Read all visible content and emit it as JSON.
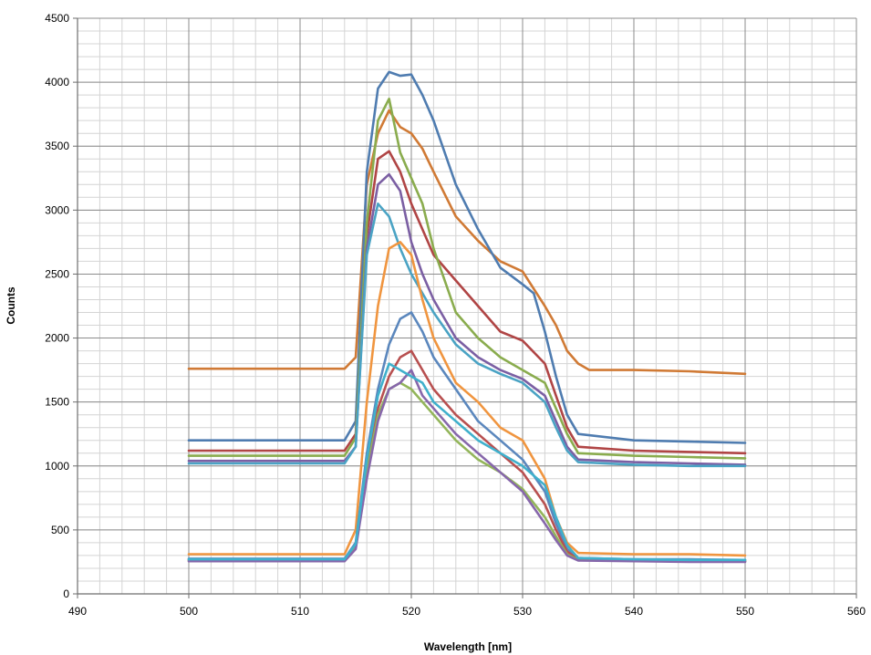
{
  "chart_data": {
    "type": "line",
    "title": "",
    "xlabel": "Wavelength [nm]",
    "ylabel": "Counts",
    "xlim": [
      490,
      560
    ],
    "ylim": [
      0,
      4500
    ],
    "x_ticks": [
      490,
      500,
      510,
      520,
      530,
      540,
      550,
      560
    ],
    "y_ticks": [
      0,
      500,
      1000,
      1500,
      2000,
      2500,
      3000,
      3500,
      4000,
      4500
    ],
    "x_tick_labels": [
      "490",
      "500",
      "510",
      "520",
      "530",
      "540",
      "550",
      "560"
    ],
    "y_tick_labels": [
      "0",
      "500",
      "1000",
      "1500",
      "2000",
      "2500",
      "3000",
      "3500",
      "4000",
      "4500"
    ],
    "grid": true,
    "legend": "none",
    "series": [
      {
        "color": "#d07a35",
        "x": [
          500,
          514,
          515,
          516,
          517,
          518,
          519,
          520,
          521,
          522,
          524,
          526,
          528,
          530,
          532,
          533,
          534,
          535,
          536,
          540,
          545,
          550
        ],
        "y": [
          1760,
          1760,
          1850,
          3200,
          3600,
          3780,
          3650,
          3600,
          3480,
          3300,
          2950,
          2760,
          2600,
          2520,
          2250,
          2100,
          1900,
          1800,
          1750,
          1750,
          1740,
          1720
        ]
      },
      {
        "color": "#4f7cb0",
        "x": [
          500,
          514,
          515,
          516,
          517,
          518,
          519,
          520,
          521,
          522,
          524,
          526,
          528,
          530,
          531,
          532,
          533,
          534,
          535,
          540,
          545,
          550
        ],
        "y": [
          1200,
          1200,
          1350,
          3300,
          3950,
          4080,
          4050,
          4060,
          3900,
          3700,
          3200,
          2850,
          2550,
          2420,
          2350,
          2050,
          1700,
          1400,
          1250,
          1200,
          1190,
          1180
        ]
      },
      {
        "color": "#b04545",
        "x": [
          500,
          514,
          515,
          516,
          517,
          518,
          519,
          520,
          521,
          522,
          524,
          526,
          528,
          530,
          532,
          533,
          534,
          535,
          540,
          545,
          550
        ],
        "y": [
          1120,
          1120,
          1250,
          2800,
          3400,
          3460,
          3300,
          3050,
          2850,
          2650,
          2450,
          2250,
          2050,
          1980,
          1800,
          1550,
          1300,
          1150,
          1120,
          1110,
          1100
        ]
      },
      {
        "color": "#8aac4e",
        "x": [
          500,
          514,
          515,
          516,
          517,
          518,
          519,
          520,
          521,
          522,
          524,
          526,
          528,
          530,
          532,
          533,
          534,
          535,
          540,
          545,
          550
        ],
        "y": [
          1080,
          1080,
          1220,
          2900,
          3700,
          3870,
          3450,
          3250,
          3050,
          2700,
          2200,
          2000,
          1850,
          1750,
          1650,
          1450,
          1250,
          1100,
          1080,
          1070,
          1060
        ]
      },
      {
        "color": "#7b5fa3",
        "x": [
          500,
          514,
          515,
          516,
          517,
          518,
          519,
          520,
          521,
          522,
          524,
          526,
          528,
          530,
          532,
          533,
          534,
          535,
          540,
          545,
          550
        ],
        "y": [
          1040,
          1040,
          1150,
          2700,
          3200,
          3280,
          3150,
          2750,
          2500,
          2300,
          2000,
          1850,
          1750,
          1680,
          1550,
          1350,
          1150,
          1050,
          1030,
          1020,
          1010
        ]
      },
      {
        "color": "#4aa3c4",
        "x": [
          500,
          514,
          515,
          516,
          517,
          518,
          519,
          520,
          521,
          522,
          524,
          526,
          528,
          530,
          532,
          533,
          534,
          535,
          540,
          545,
          550
        ],
        "y": [
          1020,
          1020,
          1150,
          2650,
          3050,
          2950,
          2700,
          2500,
          2350,
          2200,
          1950,
          1800,
          1720,
          1650,
          1500,
          1300,
          1120,
          1030,
          1010,
          1000,
          1000
        ]
      },
      {
        "color": "#f0953f",
        "x": [
          500,
          514,
          515,
          516,
          517,
          518,
          519,
          520,
          521,
          522,
          524,
          526,
          528,
          530,
          532,
          533,
          534,
          535,
          540,
          545,
          550
        ],
        "y": [
          310,
          310,
          500,
          1500,
          2250,
          2700,
          2750,
          2650,
          2300,
          2000,
          1650,
          1500,
          1300,
          1200,
          900,
          600,
          400,
          320,
          310,
          310,
          300
        ]
      },
      {
        "color": "#5b87bd",
        "x": [
          500,
          514,
          515,
          516,
          517,
          518,
          519,
          520,
          521,
          522,
          524,
          526,
          528,
          530,
          532,
          533,
          534,
          535,
          540,
          545,
          550
        ],
        "y": [
          275,
          275,
          400,
          1100,
          1600,
          1950,
          2150,
          2200,
          2050,
          1850,
          1600,
          1350,
          1200,
          1050,
          800,
          550,
          350,
          280,
          270,
          270,
          265
        ]
      },
      {
        "color": "#b85050",
        "x": [
          500,
          514,
          515,
          516,
          517,
          518,
          519,
          520,
          521,
          522,
          524,
          526,
          528,
          530,
          532,
          533,
          534,
          535,
          540,
          545,
          550
        ],
        "y": [
          265,
          265,
          380,
          1000,
          1450,
          1700,
          1850,
          1900,
          1750,
          1600,
          1400,
          1250,
          1100,
          950,
          700,
          500,
          330,
          270,
          260,
          260,
          255
        ]
      },
      {
        "color": "#93b55a",
        "x": [
          500,
          514,
          515,
          516,
          517,
          518,
          519,
          520,
          521,
          522,
          524,
          526,
          528,
          530,
          532,
          533,
          534,
          535,
          540,
          545,
          550
        ],
        "y": [
          260,
          260,
          360,
          950,
          1400,
          1600,
          1650,
          1600,
          1500,
          1400,
          1200,
          1050,
          950,
          820,
          600,
          450,
          310,
          265,
          258,
          255,
          255
        ]
      },
      {
        "color": "#8767ab",
        "x": [
          500,
          514,
          515,
          516,
          517,
          518,
          519,
          520,
          521,
          522,
          524,
          526,
          528,
          530,
          532,
          533,
          534,
          535,
          540,
          545,
          550
        ],
        "y": [
          255,
          255,
          350,
          900,
          1350,
          1600,
          1650,
          1750,
          1550,
          1450,
          1250,
          1100,
          950,
          800,
          550,
          420,
          300,
          260,
          255,
          250,
          250
        ]
      },
      {
        "color": "#3fb0cc",
        "x": [
          500,
          514,
          515,
          516,
          517,
          518,
          519,
          520,
          521,
          522,
          524,
          526,
          528,
          530,
          532,
          533,
          534,
          535,
          540,
          545,
          550
        ],
        "y": [
          270,
          270,
          390,
          1050,
          1550,
          1800,
          1750,
          1700,
          1650,
          1500,
          1350,
          1200,
          1100,
          1000,
          850,
          600,
          380,
          280,
          270,
          265,
          265
        ]
      }
    ]
  }
}
